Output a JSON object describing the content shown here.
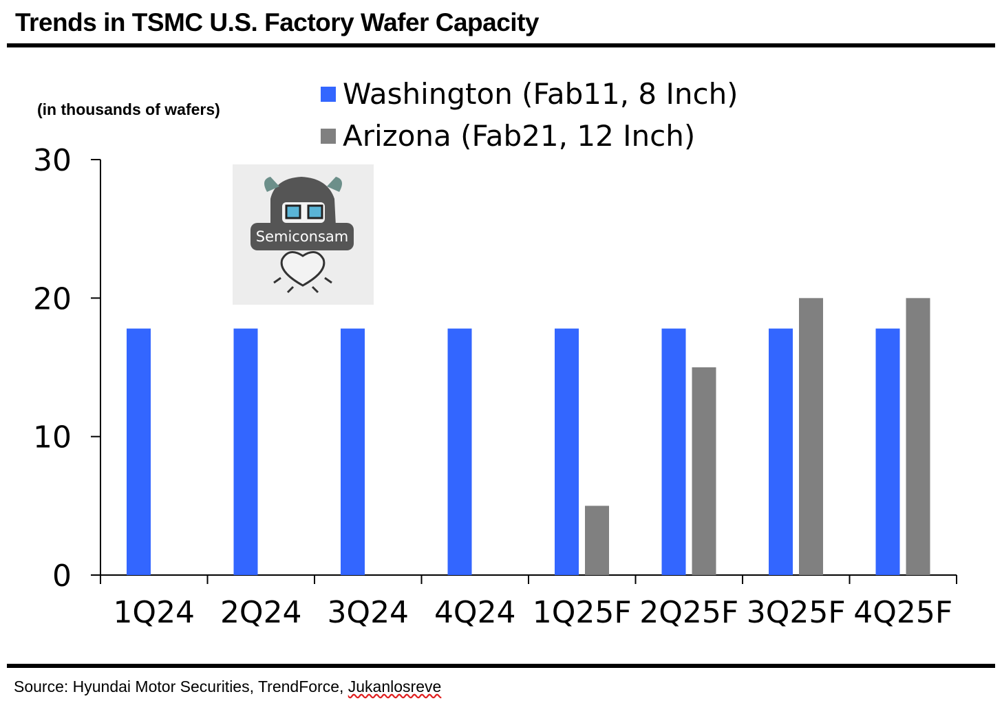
{
  "header": {
    "title": "Trends in TSMC U.S. Factory Wafer Capacity"
  },
  "units_label": "(in thousands of wafers)",
  "footer": {
    "source_prefix": "Source: Hyundai Motor Securities, TrendForce, ",
    "source_link": "Jukanlosreve"
  },
  "watermark": {
    "text": "Semiconsam"
  },
  "colors": {
    "washington": "#3366ff",
    "arizona": "#808080"
  },
  "chart_data": {
    "type": "bar",
    "categories": [
      "1Q24",
      "2Q24",
      "3Q24",
      "4Q24",
      "1Q25F",
      "2Q25F",
      "3Q25F",
      "4Q25F"
    ],
    "series": [
      {
        "name": "Washington (Fab11, 8 Inch)",
        "values": [
          17.8,
          17.8,
          17.8,
          17.8,
          17.8,
          17.8,
          17.8,
          17.8
        ]
      },
      {
        "name": "Arizona (Fab21, 12 Inch)",
        "values": [
          0,
          0,
          0,
          0,
          5,
          15,
          20,
          20
        ]
      }
    ],
    "ylim": [
      0,
      30
    ],
    "yticks": [
      0,
      10,
      20,
      30
    ],
    "legend": "top-center",
    "grid": false
  }
}
